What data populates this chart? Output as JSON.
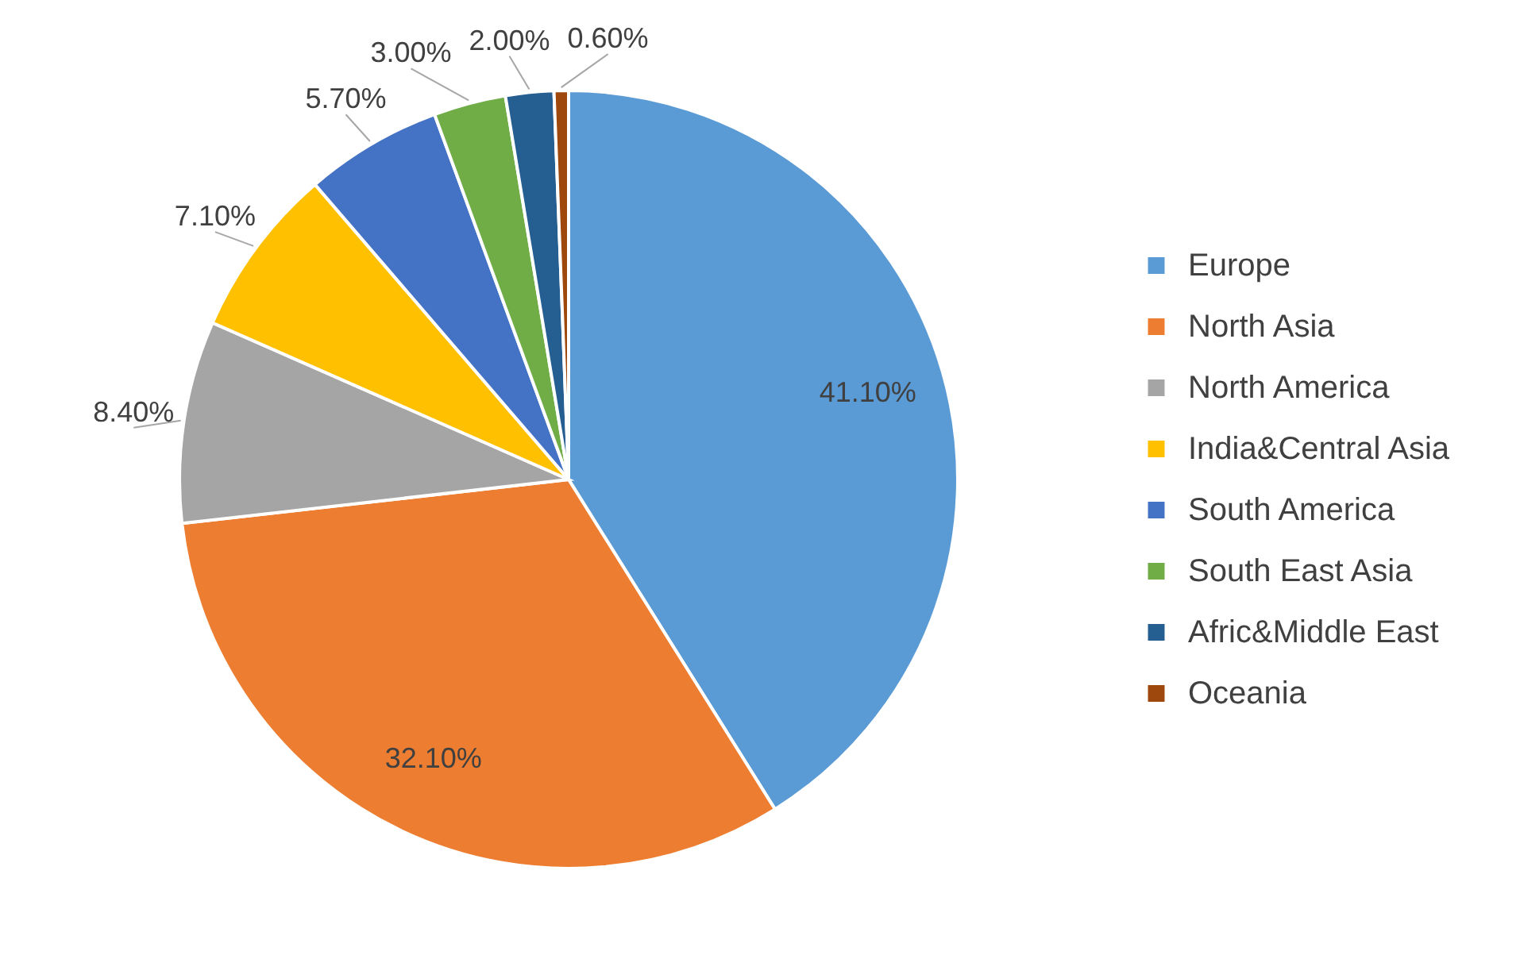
{
  "chart_data": {
    "type": "pie",
    "categories": [
      "Europe",
      "North Asia",
      "North America",
      "India&Central Asia",
      "South America",
      "South East Asia",
      "Afric&Middle East",
      "Oceania"
    ],
    "values": [
      41.1,
      32.1,
      8.4,
      7.1,
      5.7,
      3.0,
      2.0,
      0.6
    ],
    "colors": [
      "#5b9bd5",
      "#ed7d31",
      "#a5a5a5",
      "#ffc000",
      "#4472c4",
      "#70ad47",
      "#255e91",
      "#9e480e"
    ],
    "value_labels": [
      "41.10%",
      "32.10%",
      "8.40%",
      "7.10%",
      "5.70%",
      "3.00%",
      "2.00%",
      "0.60%"
    ],
    "legend": "right"
  }
}
